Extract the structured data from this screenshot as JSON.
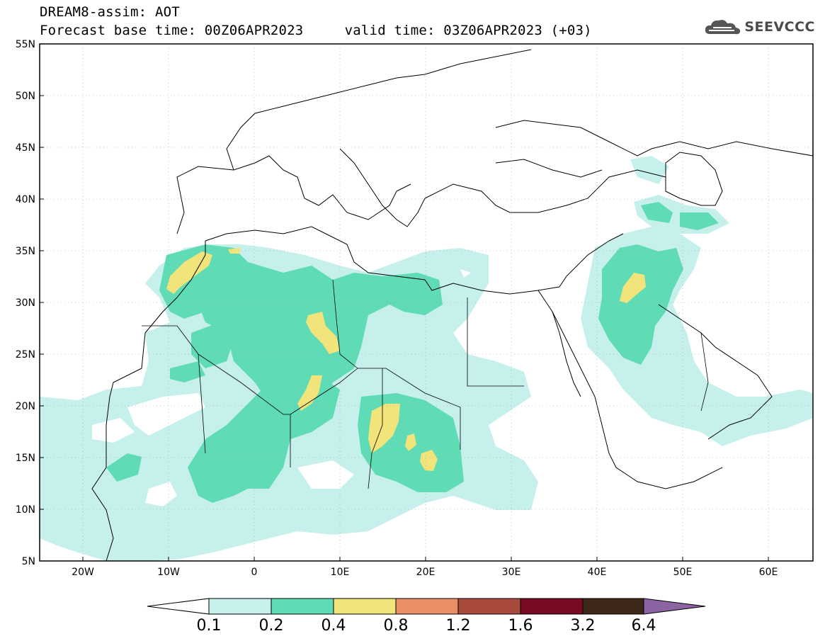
{
  "header": {
    "title_line1": "DREAM8-assim: AOT",
    "title_line2": "Forecast base time: 00Z06APR2023     valid time: 03Z06APR2023 (+03)",
    "logo_text": "SEEVCCC"
  },
  "map": {
    "lat_labels": [
      "55N",
      "50N",
      "45N",
      "40N",
      "35N",
      "30N",
      "25N",
      "20N",
      "15N",
      "10N",
      "5N"
    ],
    "lon_labels": [
      "20W",
      "10W",
      "0",
      "10E",
      "20E",
      "30E",
      "40E",
      "50E",
      "60E"
    ],
    "extent": {
      "lon_min": -25,
      "lon_max": 65,
      "lat_min": 5,
      "lat_max": 55
    }
  },
  "colorbar": {
    "labels": [
      "0.1",
      "0.2",
      "0.4",
      "0.8",
      "1.2",
      "1.6",
      "3.2",
      "6.4"
    ],
    "colors": [
      "#ffffff",
      "#c6f0ec",
      "#5fdbb5",
      "#f1e47a",
      "#e98f66",
      "#a84a3c",
      "#7a0a22",
      "#3d2718",
      "#8c64a4"
    ]
  }
}
